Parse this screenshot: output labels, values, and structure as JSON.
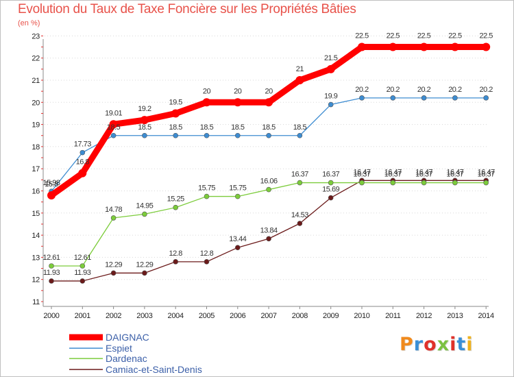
{
  "chart_data": {
    "type": "line",
    "title": "Evolution du Taux de Taxe Foncière sur les Propriétés Bâties",
    "ylabel": "(en %)",
    "xlabel": "",
    "x": [
      "2000",
      "2001",
      "2002",
      "2003",
      "2004",
      "2005",
      "2006",
      "2007",
      "2008",
      "2009",
      "2010",
      "2011",
      "2012",
      "2013",
      "2014"
    ],
    "y_ticks": [
      "11",
      "12",
      "13",
      "14",
      "15",
      "16",
      "17",
      "18",
      "19",
      "20",
      "21",
      "22",
      "23"
    ],
    "ylim": [
      11,
      23
    ],
    "grid": "horizontal dotted",
    "legend_position": "bottom-left",
    "series": [
      {
        "name": "DAIGNAC",
        "color": "#ff0000",
        "values": [
          15.8,
          16.8,
          19.01,
          19.2,
          19.5,
          20,
          20,
          20,
          21,
          21.5,
          22.5,
          22.5,
          22.5,
          22.5,
          22.5
        ],
        "labels": [
          "15.8",
          "16.8",
          "19.01",
          "19.2",
          "19.5",
          "20",
          "20",
          "20",
          "21",
          "21.5",
          "22.5",
          "22.5",
          "22.5",
          "22.5",
          "22.5"
        ]
      },
      {
        "name": "Espiet",
        "color": "#3d8cd1",
        "values": [
          15.98,
          17.73,
          18.5,
          18.5,
          18.5,
          18.5,
          18.5,
          18.5,
          18.5,
          19.9,
          20.2,
          20.2,
          20.2,
          20.2,
          20.2
        ],
        "labels": [
          "15.98",
          "17.73",
          "18.5",
          "18.5",
          "18.5",
          "18.5",
          "18.5",
          "18.5",
          "18.5",
          "19.9",
          "20.2",
          "20.2",
          "20.2",
          "20.2",
          "20.2"
        ]
      },
      {
        "name": "Dardenac",
        "color": "#7ccc3b",
        "values": [
          12.61,
          12.61,
          14.78,
          14.95,
          15.25,
          15.75,
          15.75,
          16.06,
          16.37,
          16.37,
          16.37,
          16.37,
          16.37,
          16.37,
          16.37
        ],
        "labels": [
          "12.61",
          "12.61",
          "14.78",
          "14.95",
          "15.25",
          "15.75",
          "15.75",
          "16.06",
          "16.37",
          "16.37",
          "16.37",
          "16.37",
          "16.37",
          "16.37",
          "16.37"
        ]
      },
      {
        "name": "Camiac-et-Saint-Denis",
        "color": "#6b1a1a",
        "values": [
          11.93,
          11.93,
          12.29,
          12.29,
          12.8,
          12.8,
          13.44,
          13.84,
          14.53,
          15.69,
          16.47,
          16.47,
          16.47,
          16.47,
          16.47
        ],
        "labels": [
          "11.93",
          "11.93",
          "12.29",
          "12.29",
          "12.8",
          "12.8",
          "13.44",
          "13.84",
          "14.53",
          "15.69",
          "16.47",
          "16.47",
          "16.47",
          "16.47",
          "16.47"
        ]
      }
    ]
  },
  "logo": {
    "text": "Proxiti",
    "colors": [
      "#f08a1c",
      "#3a8fd6",
      "#e0312a",
      "#7cc242",
      "#e0312a",
      "#3a8fd6",
      "#f0b21c"
    ]
  }
}
